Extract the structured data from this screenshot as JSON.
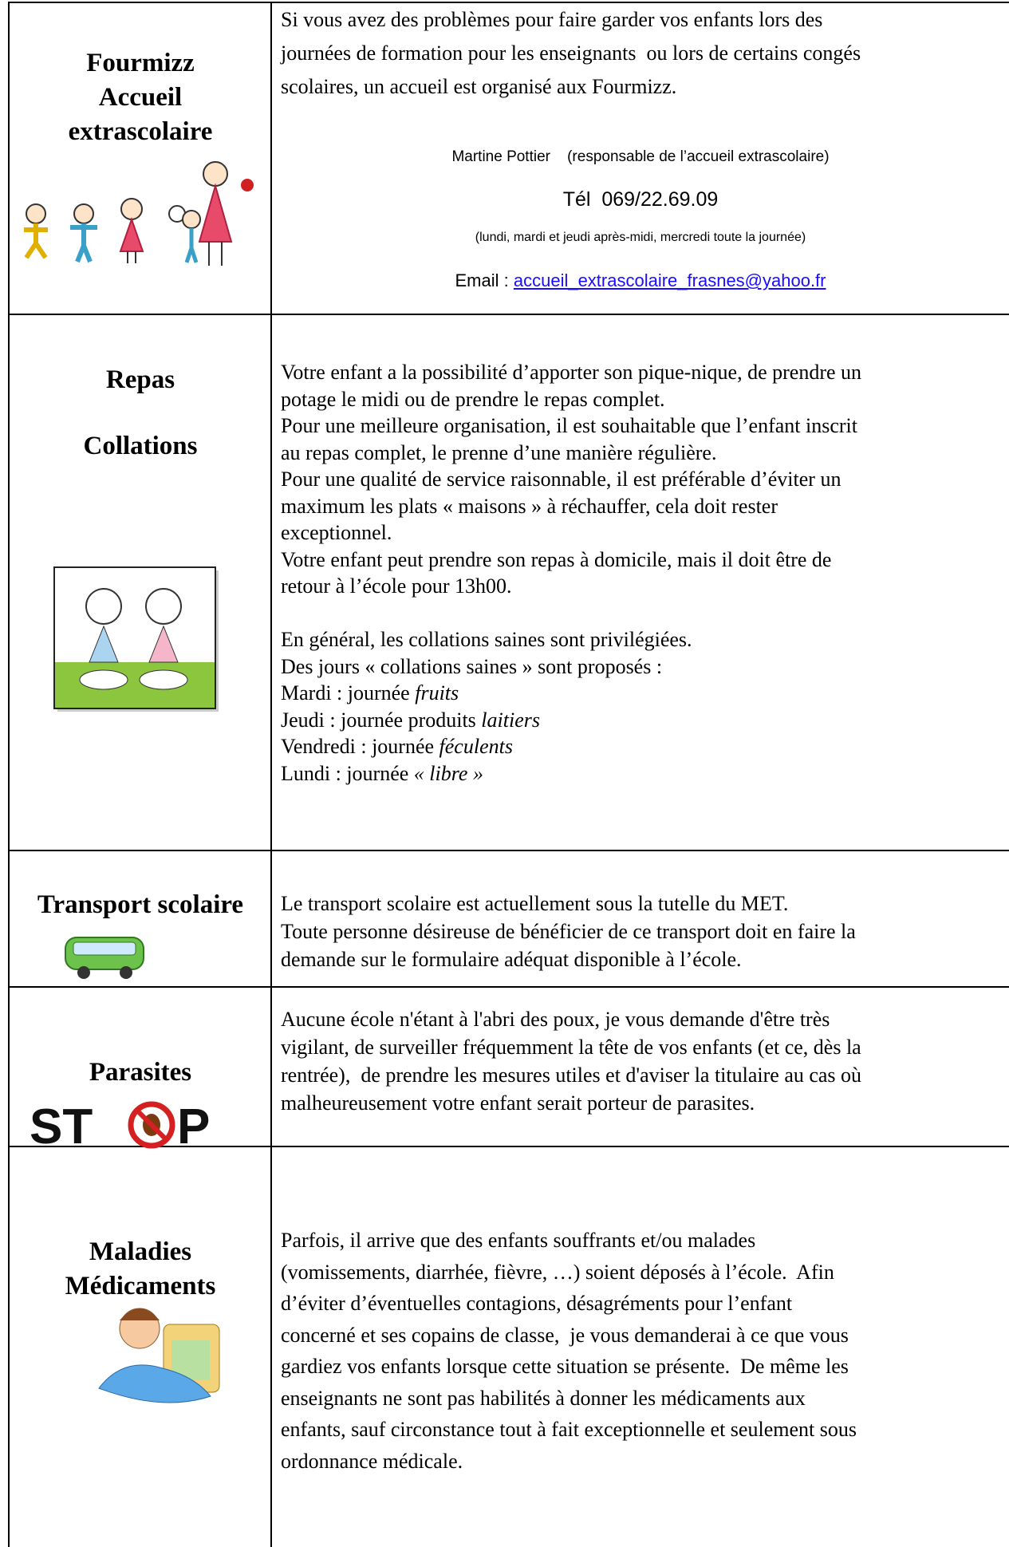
{
  "rows": [
    {
      "heading": [
        "Fourmizz",
        "Accueil",
        "extrascolaire"
      ],
      "text": [
        [
          "Si vous avez des problèmes pour faire garder vos enfants lors des",
          "journées de formation pour les enseignants  ou lors de certains congés",
          "scolaires, un accueil est organisé aux Fourmizz."
        ]
      ],
      "contact": {
        "name": "Martine Pottier    (responsable de l’accueil extrascolaire)",
        "phone": "Tél  069/22.69.09",
        "hours": "(lundi, mardi et jeudi après-midi, mercredi toute la journée)",
        "email_label": "Email : ",
        "email": "accueil_extrascolaire_frasnes@yahoo.fr"
      }
    },
    {
      "heading": [
        "Repas",
        "Collations"
      ],
      "text": [
        [
          "Votre enfant a la possibilité d’apporter son pique-nique, de prendre un",
          "potage le midi ou de prendre le repas complet.",
          "Pour une meilleure organisation, il est souhaitable que l’enfant inscrit",
          "au repas complet, le prenne d’une manière régulière.",
          "Pour une qualité de service raisonnable, il est préférable d’éviter un",
          "maximum les plats « maisons » à réchauffer, cela doit rester",
          "exceptionnel.",
          "Votre enfant peut prendre son repas à domicile, mais il doit être de",
          "retour à l’école pour 13h00."
        ],
        [
          "En général, les collations saines sont privilégiées.",
          "Des jours « collations saines » sont proposés :",
          {
            "text": "Mardi : journée ",
            "italic": "fruits"
          },
          {
            "text": "Jeudi : journée produits ",
            "italic": "laitiers"
          },
          {
            "text": "Vendredi : journée ",
            "italic": "féculents"
          },
          {
            "text": "Lundi : journée ",
            "italic": "« libre »"
          }
        ]
      ]
    },
    {
      "heading": [
        "Transport scolaire"
      ],
      "text": [
        [
          "Le transport scolaire est actuellement sous la tutelle du MET.",
          "Toute personne désireuse de bénéficier de ce transport doit en faire la",
          "demande sur le formulaire adéquat disponible à l’école."
        ]
      ]
    },
    {
      "heading": [
        "Parasites"
      ],
      "text": [
        [
          "Aucune école n'étant à l'abri des poux, je vous demande d'être très",
          "vigilant, de surveiller fréquemment la tête de vos enfants (et ce, dès la",
          "rentrée),  de prendre les mesures utiles et d'aviser la titulaire au cas où",
          "malheureusement votre enfant serait porteur de parasites."
        ]
      ]
    },
    {
      "heading": [
        "Maladies",
        "Médicaments"
      ],
      "text": [
        [
          "Parfois, il arrive que des enfants souffrants et/ou malades",
          "(vomissements, diarrhée, fièvre, …) soient déposés à l’école.  Afin",
          "d’éviter d’éventuelles contagions, désagréments pour l’enfant",
          "concerné et ses copains de classe,  je vous demanderai à ce que vous",
          "gardiez vos enfants lorsque cette situation se présente.  De même les",
          "enseignants ne sont pas habilités à donner les médicaments aux",
          "enfants, sauf circonstance tout à fait exceptionnelle et seulement sous",
          "ordonnance médicale."
        ]
      ]
    }
  ]
}
